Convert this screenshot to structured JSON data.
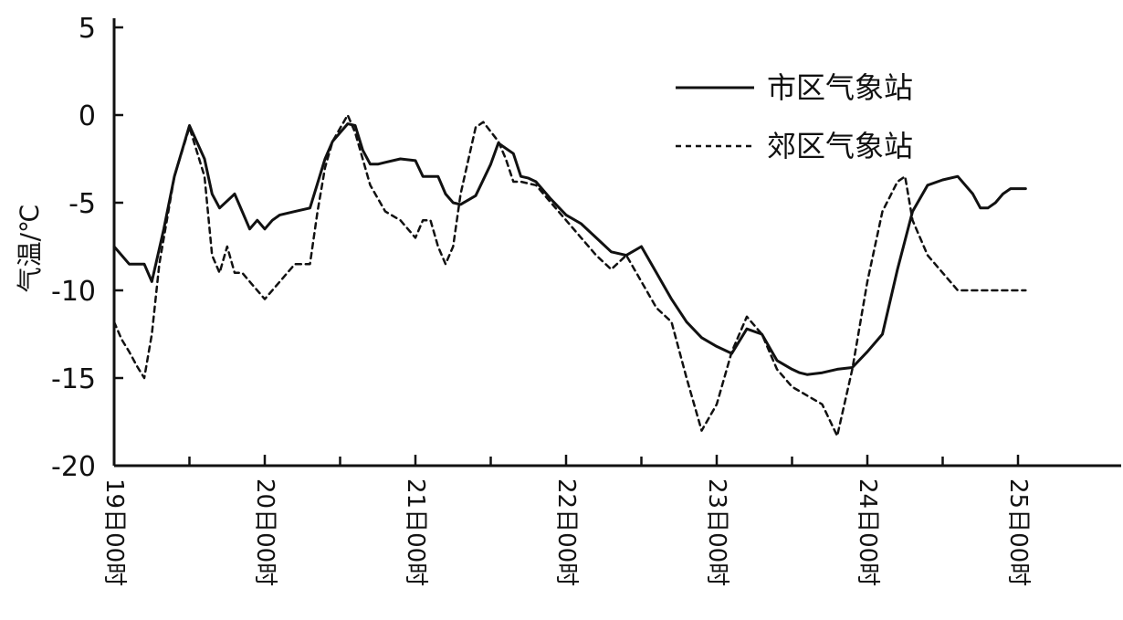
{
  "chart_data": {
    "type": "line",
    "ylabel": "气温/℃",
    "ylim": [
      -20,
      5
    ],
    "yticks": [
      5,
      0,
      -5,
      -10,
      -15,
      -20
    ],
    "xlim": [
      0,
      6.6
    ],
    "xticks": [
      {
        "value": 0,
        "label": "19日00时"
      },
      {
        "value": 1,
        "label": "20日00时"
      },
      {
        "value": 2,
        "label": "21日00时"
      },
      {
        "value": 3,
        "label": "22日00时"
      },
      {
        "value": 4,
        "label": "23日00时"
      },
      {
        "value": 5,
        "label": "24日00时"
      },
      {
        "value": 6,
        "label": "25日00时"
      }
    ],
    "minor_ticks": [
      0.5,
      1.5,
      2.5,
      3.5,
      4.5,
      5.5
    ],
    "legend_position": "top-right",
    "colors": {
      "line": "#111111",
      "background": "#ffffff"
    },
    "series": [
      {
        "name": "市区气象站",
        "style": "solid",
        "x": [
          0,
          0.1,
          0.2,
          0.25,
          0.33,
          0.4,
          0.5,
          0.6,
          0.65,
          0.7,
          0.8,
          0.85,
          0.9,
          0.95,
          1.0,
          1.05,
          1.1,
          1.2,
          1.3,
          1.4,
          1.45,
          1.55,
          1.6,
          1.65,
          1.7,
          1.75,
          1.8,
          1.9,
          2.0,
          2.05,
          2.15,
          2.2,
          2.25,
          2.3,
          2.4,
          2.5,
          2.55,
          2.6,
          2.65,
          2.7,
          2.75,
          2.8,
          2.9,
          3.0,
          3.1,
          3.2,
          3.3,
          3.4,
          3.5,
          3.6,
          3.7,
          3.8,
          3.9,
          4.0,
          4.1,
          4.2,
          4.3,
          4.4,
          4.5,
          4.55,
          4.6,
          4.7,
          4.8,
          4.9,
          5.0,
          5.1,
          5.2,
          5.3,
          5.4,
          5.5,
          5.6,
          5.7,
          5.75,
          5.8,
          5.85,
          5.9,
          5.95,
          6.0,
          6.05
        ],
        "y": [
          -7.5,
          -8.5,
          -8.5,
          -9.5,
          -6.5,
          -3.5,
          -0.6,
          -2.5,
          -4.5,
          -5.3,
          -4.5,
          -5.5,
          -6.5,
          -6.0,
          -6.5,
          -6.0,
          -5.7,
          -5.5,
          -5.3,
          -2.5,
          -1.5,
          -0.5,
          -0.6,
          -2.0,
          -2.8,
          -2.8,
          -2.7,
          -2.5,
          -2.6,
          -3.5,
          -3.5,
          -4.5,
          -5.0,
          -5.1,
          -4.6,
          -2.8,
          -1.6,
          -1.9,
          -2.2,
          -3.5,
          -3.6,
          -3.8,
          -4.8,
          -5.7,
          -6.2,
          -7.0,
          -7.8,
          -8.0,
          -7.5,
          -9.0,
          -10.5,
          -11.8,
          -12.7,
          -13.2,
          -13.6,
          -12.2,
          -12.5,
          -14.0,
          -14.5,
          -14.7,
          -14.8,
          -14.7,
          -14.5,
          -14.4,
          -13.5,
          -12.5,
          -8.8,
          -5.5,
          -4.0,
          -3.7,
          -3.5,
          -4.5,
          -5.3,
          -5.3,
          -5.0,
          -4.5,
          -4.2,
          -4.2,
          -4.2
        ]
      },
      {
        "name": "郊区气象站",
        "style": "dashed",
        "x": [
          0,
          0.05,
          0.1,
          0.15,
          0.2,
          0.25,
          0.3,
          0.4,
          0.5,
          0.6,
          0.65,
          0.7,
          0.75,
          0.8,
          0.85,
          0.9,
          1.0,
          1.1,
          1.2,
          1.3,
          1.35,
          1.4,
          1.45,
          1.55,
          1.6,
          1.7,
          1.8,
          1.9,
          2.0,
          2.05,
          2.1,
          2.15,
          2.2,
          2.25,
          2.3,
          2.4,
          2.45,
          2.55,
          2.6,
          2.65,
          2.7,
          2.8,
          2.9,
          3.0,
          3.1,
          3.2,
          3.3,
          3.4,
          3.5,
          3.6,
          3.7,
          3.8,
          3.9,
          4.0,
          4.1,
          4.2,
          4.3,
          4.4,
          4.5,
          4.6,
          4.7,
          4.8,
          4.9,
          5.0,
          5.1,
          5.2,
          5.25,
          5.3,
          5.4,
          5.5,
          5.6,
          5.7,
          5.75,
          5.8,
          5.9,
          6.0,
          6.05
        ],
        "y": [
          -11.8,
          -12.8,
          -13.5,
          -14.3,
          -15.0,
          -12.5,
          -8.5,
          -3.5,
          -0.7,
          -3.5,
          -8.0,
          -9.0,
          -7.5,
          -9.0,
          -9.0,
          -9.5,
          -10.5,
          -9.5,
          -8.5,
          -8.5,
          -5.5,
          -3.0,
          -1.5,
          0.0,
          -1.0,
          -4.0,
          -5.5,
          -6.0,
          -7.0,
          -6.0,
          -6.0,
          -7.5,
          -8.5,
          -7.5,
          -4.5,
          -0.7,
          -0.4,
          -1.5,
          -2.5,
          -3.8,
          -3.8,
          -4.0,
          -5.0,
          -6.0,
          -7.0,
          -8.0,
          -8.8,
          -8.0,
          -9.5,
          -11.0,
          -11.8,
          -15.0,
          -18.0,
          -16.5,
          -13.5,
          -11.5,
          -12.5,
          -14.5,
          -15.5,
          -16.0,
          -16.5,
          -18.3,
          -14.5,
          -9.5,
          -5.5,
          -3.8,
          -3.5,
          -6.0,
          -8.0,
          -9.0,
          -10.0,
          -10.0,
          -10.0,
          -10.0,
          -10.0,
          -10.0,
          -10.0
        ]
      }
    ]
  }
}
